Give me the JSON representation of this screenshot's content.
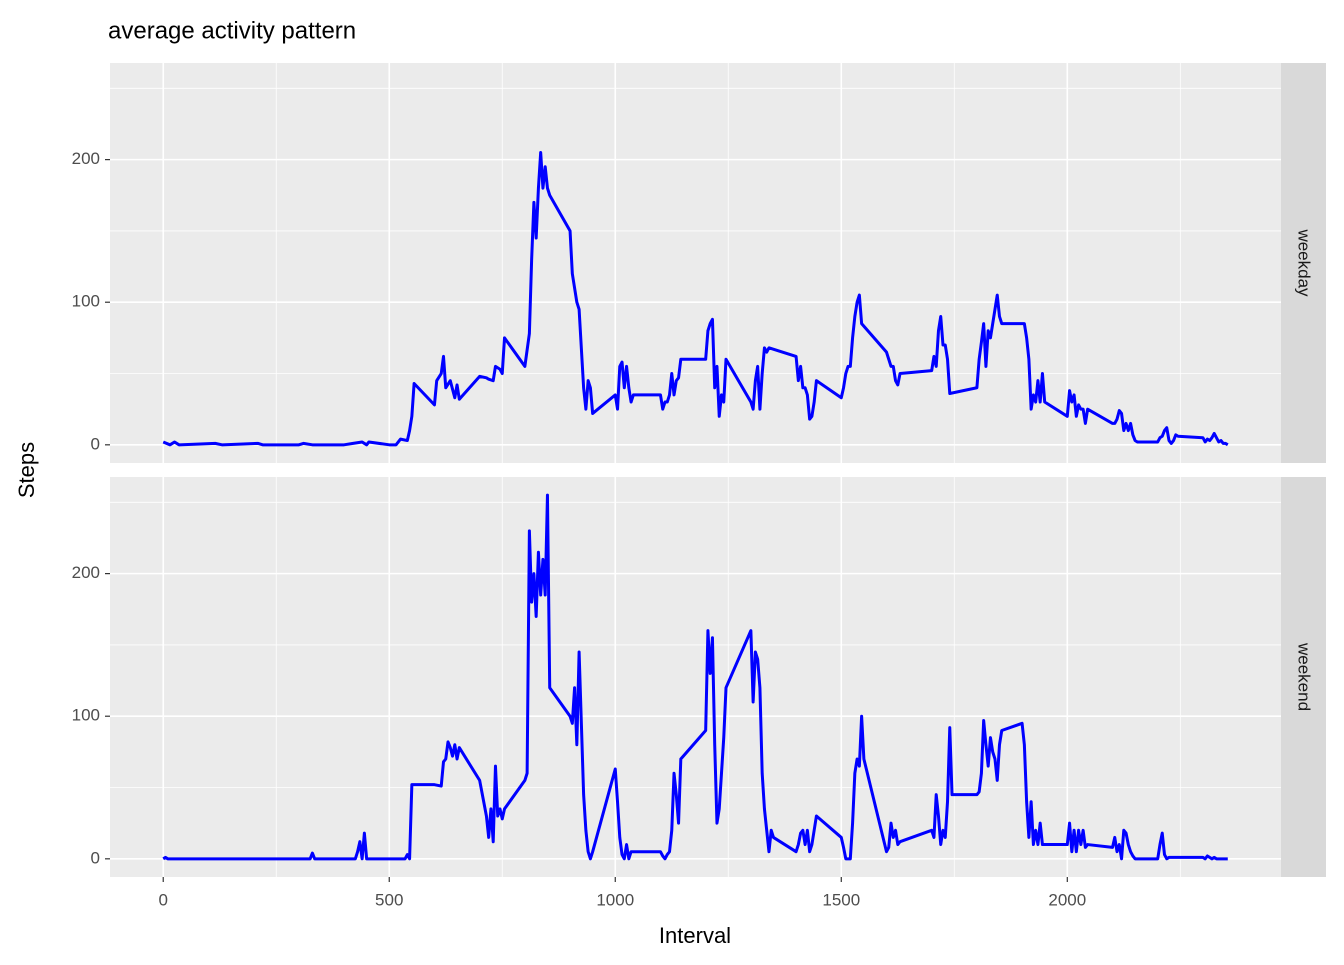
{
  "chart_data": {
    "type": "line",
    "title": "average activity pattern",
    "x_label": "Interval",
    "y_label": "Steps",
    "xlim": [
      -117.75,
      2472.75
    ],
    "xticks": [
      0,
      500,
      1000,
      1500,
      2000
    ],
    "x_minor_ticks": [
      250,
      750,
      1250,
      1750,
      2250
    ],
    "ylim": [
      -12.75,
      267.75
    ],
    "yticks": [
      0,
      100,
      200
    ],
    "y_minor_ticks": [
      50,
      150,
      250
    ],
    "grid": true,
    "series": [
      {
        "name": "weekday",
        "color": "#0000ff",
        "x": [
          0,
          15,
          25,
          35,
          115,
          130,
          210,
          220,
          300,
          310,
          330,
          400,
          420,
          440,
          450,
          455,
          500,
          515,
          525,
          540,
          545,
          550,
          555,
          600,
          605,
          615,
          620,
          625,
          635,
          645,
          650,
          655,
          700,
          715,
          720,
          730,
          735,
          745,
          750,
          755,
          800,
          810,
          815,
          820,
          825,
          830,
          835,
          840,
          845,
          850,
          855,
          900,
          905,
          915,
          920,
          930,
          935,
          940,
          945,
          950,
          1000,
          1005,
          1010,
          1015,
          1020,
          1025,
          1030,
          1035,
          1040,
          1100,
          1105,
          1110,
          1115,
          1120,
          1125,
          1130,
          1135,
          1140,
          1145,
          1200,
          1205,
          1210,
          1215,
          1220,
          1225,
          1230,
          1235,
          1240,
          1245,
          1300,
          1305,
          1310,
          1315,
          1320,
          1325,
          1330,
          1335,
          1340,
          1400,
          1405,
          1410,
          1415,
          1420,
          1425,
          1430,
          1435,
          1440,
          1445,
          1500,
          1505,
          1510,
          1515,
          1520,
          1525,
          1530,
          1535,
          1540,
          1545,
          1600,
          1605,
          1610,
          1615,
          1620,
          1625,
          1630,
          1700,
          1705,
          1710,
          1715,
          1720,
          1725,
          1730,
          1735,
          1740,
          1800,
          1805,
          1810,
          1815,
          1820,
          1825,
          1830,
          1835,
          1840,
          1845,
          1850,
          1855,
          1900,
          1905,
          1910,
          1915,
          1920,
          1925,
          1930,
          1935,
          1940,
          1945,
          1950,
          2000,
          2005,
          2010,
          2015,
          2020,
          2025,
          2030,
          2035,
          2040,
          2045,
          2100,
          2105,
          2110,
          2115,
          2120,
          2125,
          2130,
          2135,
          2140,
          2145,
          2150,
          2155,
          2200,
          2205,
          2210,
          2215,
          2220,
          2225,
          2230,
          2235,
          2240,
          2245,
          2300,
          2305,
          2310,
          2315,
          2320,
          2325,
          2330,
          2335,
          2340,
          2345,
          2350,
          2355
        ],
        "values": [
          2,
          0,
          2,
          0,
          1,
          0,
          1,
          0,
          0,
          1,
          0,
          0,
          1,
          2,
          0,
          2,
          0,
          0,
          4,
          3,
          10,
          20,
          43,
          28,
          45,
          50,
          62,
          40,
          45,
          33,
          42,
          32,
          48,
          47,
          46,
          45,
          55,
          53,
          50,
          75,
          55,
          78,
          130,
          170,
          145,
          180,
          205,
          180,
          195,
          180,
          175,
          150,
          120,
          100,
          95,
          40,
          25,
          45,
          40,
          22,
          35,
          25,
          55,
          58,
          40,
          55,
          40,
          30,
          35,
          35,
          25,
          30,
          30,
          35,
          50,
          35,
          45,
          47,
          60,
          60,
          80,
          85,
          88,
          40,
          55,
          20,
          35,
          30,
          60,
          30,
          25,
          45,
          55,
          25,
          50,
          68,
          65,
          68,
          62,
          45,
          55,
          40,
          40,
          35,
          18,
          20,
          30,
          45,
          33,
          40,
          50,
          55,
          55,
          75,
          90,
          100,
          105,
          85,
          65,
          60,
          55,
          55,
          45,
          42,
          50,
          52,
          62,
          55,
          80,
          90,
          70,
          70,
          60,
          36,
          40,
          60,
          72,
          85,
          55,
          80,
          75,
          85,
          95,
          105,
          90,
          85,
          85,
          85,
          75,
          60,
          25,
          35,
          30,
          45,
          30,
          50,
          30,
          20,
          38,
          30,
          35,
          20,
          28,
          25,
          25,
          15,
          25,
          15,
          15,
          18,
          24,
          22,
          10,
          15,
          10,
          15,
          7,
          3,
          2,
          2,
          5,
          6,
          10,
          12,
          3,
          1,
          3,
          7,
          6,
          5,
          2,
          4,
          3,
          5,
          8,
          5,
          2,
          3,
          1,
          1,
          0
        ]
      },
      {
        "name": "weekend",
        "color": "#0000ff",
        "x": [
          0,
          5,
          10,
          100,
          200,
          300,
          325,
          330,
          335,
          400,
          425,
          430,
          435,
          440,
          445,
          450,
          500,
          535,
          540,
          545,
          550,
          600,
          615,
          620,
          625,
          630,
          635,
          640,
          645,
          650,
          655,
          700,
          715,
          720,
          725,
          730,
          735,
          740,
          745,
          750,
          755,
          800,
          805,
          810,
          815,
          820,
          825,
          830,
          835,
          840,
          845,
          850,
          855,
          900,
          905,
          910,
          915,
          920,
          925,
          930,
          935,
          940,
          945,
          950,
          1000,
          1005,
          1010,
          1015,
          1020,
          1025,
          1030,
          1035,
          1040,
          1100,
          1105,
          1110,
          1115,
          1120,
          1125,
          1130,
          1135,
          1140,
          1145,
          1200,
          1205,
          1210,
          1215,
          1220,
          1225,
          1230,
          1235,
          1240,
          1245,
          1300,
          1305,
          1310,
          1315,
          1320,
          1325,
          1330,
          1335,
          1340,
          1345,
          1350,
          1400,
          1405,
          1410,
          1415,
          1420,
          1425,
          1430,
          1435,
          1440,
          1445,
          1500,
          1505,
          1510,
          1515,
          1520,
          1525,
          1530,
          1535,
          1540,
          1545,
          1550,
          1600,
          1605,
          1610,
          1615,
          1620,
          1625,
          1630,
          1700,
          1705,
          1710,
          1715,
          1720,
          1725,
          1730,
          1735,
          1740,
          1745,
          1800,
          1805,
          1810,
          1815,
          1820,
          1825,
          1830,
          1835,
          1840,
          1845,
          1850,
          1855,
          1900,
          1905,
          1910,
          1915,
          1920,
          1925,
          1930,
          1935,
          1940,
          1945,
          2000,
          2005,
          2010,
          2015,
          2020,
          2025,
          2030,
          2035,
          2040,
          2045,
          2100,
          2105,
          2110,
          2115,
          2120,
          2125,
          2130,
          2135,
          2140,
          2145,
          2150,
          2155,
          2200,
          2205,
          2210,
          2215,
          2220,
          2225,
          2300,
          2305,
          2310,
          2315,
          2320,
          2325,
          2330,
          2335,
          2340,
          2345,
          2350,
          2355
        ],
        "values": [
          0,
          1,
          0,
          0,
          0,
          0,
          0,
          4,
          0,
          0,
          0,
          5,
          12,
          0,
          18,
          0,
          0,
          0,
          3,
          0,
          52,
          52,
          51,
          68,
          70,
          82,
          78,
          72,
          80,
          70,
          78,
          55,
          30,
          15,
          35,
          12,
          65,
          30,
          35,
          28,
          35,
          55,
          60,
          230,
          180,
          200,
          170,
          215,
          185,
          210,
          185,
          255,
          120,
          100,
          95,
          120,
          80,
          145,
          95,
          45,
          20,
          5,
          0,
          5,
          63,
          40,
          15,
          3,
          0,
          10,
          0,
          5,
          5,
          5,
          2,
          0,
          3,
          5,
          20,
          60,
          45,
          25,
          70,
          90,
          160,
          130,
          155,
          80,
          25,
          35,
          60,
          85,
          120,
          160,
          110,
          145,
          140,
          120,
          60,
          35,
          20,
          5,
          20,
          15,
          5,
          10,
          18,
          20,
          10,
          20,
          5,
          10,
          20,
          30,
          15,
          8,
          0,
          0,
          0,
          25,
          60,
          70,
          65,
          100,
          70,
          5,
          8,
          25,
          15,
          20,
          10,
          12,
          20,
          15,
          45,
          30,
          10,
          20,
          15,
          40,
          92,
          45,
          45,
          47,
          60,
          97,
          80,
          65,
          85,
          75,
          70,
          55,
          80,
          90,
          95,
          80,
          40,
          15,
          40,
          10,
          20,
          10,
          25,
          10,
          10,
          25,
          5,
          20,
          5,
          20,
          10,
          20,
          8,
          10,
          8,
          15,
          5,
          10,
          0,
          20,
          18,
          10,
          5,
          2,
          0,
          0,
          0,
          10,
          18,
          3,
          0,
          1,
          1,
          0,
          2,
          1,
          0,
          1,
          0,
          0,
          0,
          0,
          0,
          0
        ]
      }
    ]
  }
}
